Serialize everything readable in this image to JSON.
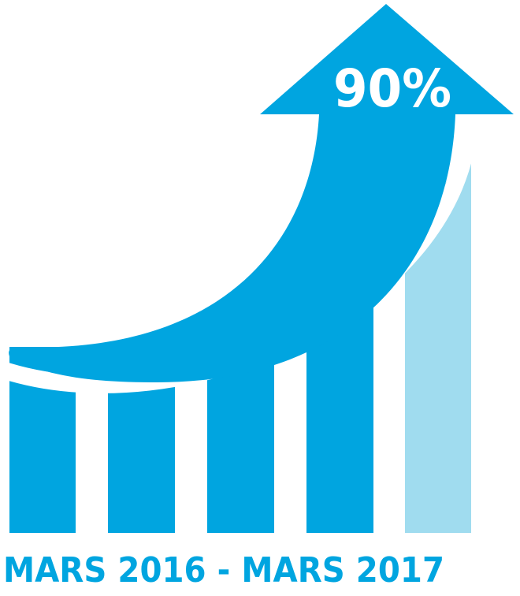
{
  "headline": "90%",
  "caption": "MARS 2016 - MARS 2017"
}
